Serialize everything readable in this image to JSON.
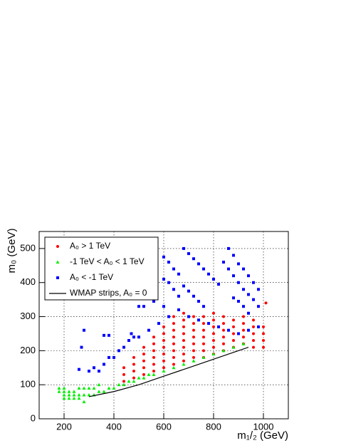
{
  "chart_data": {
    "type": "scatter",
    "x_label": "m₁/₂ (GeV)",
    "y_label": "m₀ (GeV)",
    "xlim": [
      100,
      1100
    ],
    "ylim": [
      0,
      550
    ],
    "xticks": [
      200,
      400,
      600,
      800,
      1000
    ],
    "yticks": [
      0,
      100,
      200,
      300,
      400,
      500
    ],
    "grid": true,
    "legend_position": "upper-left",
    "series": [
      {
        "name": "A₀ > 1 TeV",
        "color": "#ff0000",
        "marker": "circle",
        "x": [
          440,
          440,
          440,
          480,
          480,
          480,
          480,
          520,
          520,
          520,
          520,
          520,
          560,
          560,
          560,
          560,
          560,
          560,
          600,
          600,
          600,
          600,
          600,
          600,
          600,
          640,
          640,
          640,
          640,
          640,
          640,
          640,
          640,
          680,
          680,
          680,
          680,
          680,
          680,
          680,
          680,
          720,
          720,
          720,
          720,
          720,
          720,
          720,
          760,
          760,
          760,
          760,
          760,
          760,
          760,
          800,
          800,
          800,
          800,
          800,
          800,
          800,
          840,
          840,
          840,
          840,
          840,
          840,
          880,
          880,
          880,
          880,
          880,
          920,
          920,
          920,
          920,
          920,
          960,
          960,
          960,
          960,
          960,
          1000,
          1000,
          1000,
          1000,
          1010
        ],
        "y": [
          110,
          130,
          150,
          120,
          140,
          160,
          180,
          130,
          150,
          170,
          190,
          210,
          140,
          160,
          180,
          200,
          220,
          240,
          150,
          170,
          190,
          210,
          230,
          250,
          270,
          160,
          180,
          200,
          220,
          240,
          260,
          280,
          300,
          170,
          190,
          210,
          230,
          250,
          270,
          290,
          310,
          180,
          200,
          220,
          240,
          260,
          280,
          300,
          180,
          200,
          220,
          240,
          260,
          280,
          300,
          190,
          210,
          230,
          250,
          270,
          290,
          310,
          200,
          220,
          240,
          260,
          280,
          300,
          210,
          230,
          250,
          270,
          290,
          220,
          240,
          260,
          280,
          300,
          210,
          230,
          250,
          270,
          290,
          210,
          230,
          250,
          270,
          340
        ]
      },
      {
        "name": "-1 TeV < A₀ < 1 TeV",
        "color": "#00ee00",
        "marker": "triangle",
        "x": [
          180,
          180,
          200,
          200,
          200,
          200,
          220,
          220,
          220,
          240,
          240,
          240,
          260,
          260,
          260,
          280,
          280,
          280,
          300,
          300,
          320,
          320,
          340,
          340,
          360,
          380,
          400,
          420,
          440,
          460,
          480,
          500,
          520,
          540,
          560,
          600,
          640,
          680,
          720,
          760,
          800,
          840,
          880,
          920
        ],
        "y": [
          80,
          90,
          60,
          70,
          80,
          90,
          60,
          70,
          80,
          60,
          70,
          80,
          60,
          70,
          90,
          50,
          70,
          90,
          70,
          90,
          70,
          90,
          80,
          100,
          80,
          90,
          90,
          100,
          100,
          110,
          110,
          120,
          120,
          130,
          130,
          140,
          150,
          160,
          170,
          180,
          190,
          200,
          210,
          220
        ]
      },
      {
        "name": "A₀ < -1 TeV",
        "color": "#0000ff",
        "marker": "square",
        "x": [
          280,
          270,
          260,
          300,
          320,
          340,
          360,
          380,
          400,
          420,
          440,
          460,
          480,
          500,
          540,
          580,
          620,
          660,
          700,
          740,
          780,
          820,
          860,
          900,
          940,
          980,
          360,
          380,
          470,
          500,
          520,
          560,
          600,
          620,
          640,
          660,
          600,
          600,
          620,
          640,
          660,
          680,
          700,
          720,
          740,
          760,
          780,
          800,
          820,
          680,
          700,
          720,
          740,
          760,
          860,
          880,
          900,
          920,
          940,
          960,
          980,
          840,
          860,
          880,
          900,
          920,
          940,
          960,
          980,
          880,
          900,
          920,
          940
        ],
        "y": [
          260,
          210,
          145,
          140,
          150,
          140,
          160,
          180,
          180,
          200,
          210,
          230,
          240,
          240,
          260,
          280,
          300,
          320,
          300,
          290,
          280,
          270,
          260,
          250,
          260,
          270,
          245,
          245,
          250,
          330,
          330,
          345,
          330,
          400,
          380,
          360,
          410,
          475,
          460,
          440,
          425,
          500,
          485,
          470,
          455,
          440,
          425,
          410,
          395,
          390,
          375,
          360,
          345,
          330,
          500,
          480,
          455,
          440,
          420,
          400,
          380,
          460,
          440,
          420,
          400,
          380,
          365,
          350,
          330,
          355,
          345,
          330,
          310
        ]
      },
      {
        "name": "WMAP strips, A₀ = 0",
        "color": "#000000",
        "marker": "line",
        "x": [
          300,
          400,
          500,
          600,
          700,
          800,
          900,
          940
        ],
        "y": [
          65,
          80,
          100,
          125,
          150,
          175,
          200,
          210
        ]
      }
    ]
  }
}
